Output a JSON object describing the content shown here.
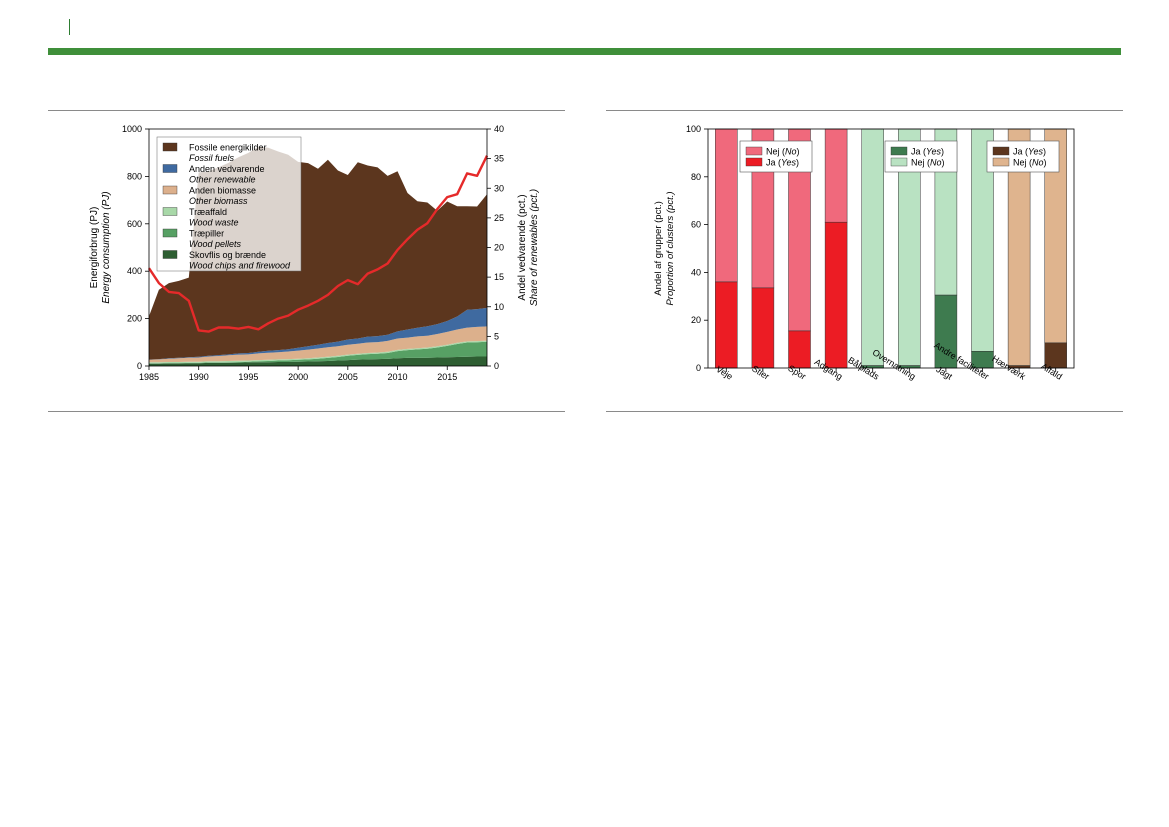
{
  "charts": [
    {
      "type": "area",
      "ylabel": "Energiforbrug (PJ)",
      "ylabel_en": "Energy consumption (PJ)",
      "y2label": "Andel vedvarende (pct.)",
      "y2label_en": "Share of renewables (pct.)",
      "ylim": [
        0,
        1000
      ],
      "y2lim": [
        0,
        40
      ],
      "xlim": [
        1985,
        2019
      ],
      "x_ticks": [
        1985,
        1990,
        1995,
        2000,
        2005,
        2010,
        2015
      ],
      "y_ticks": [
        0,
        200,
        400,
        600,
        800,
        1000
      ],
      "y2_ticks": [
        0,
        5,
        10,
        15,
        20,
        25,
        30,
        35,
        40
      ],
      "legend_position": "top-left",
      "x": [
        1985,
        1986,
        1987,
        1988,
        1989,
        1990,
        1991,
        1992,
        1993,
        1994,
        1995,
        1996,
        1997,
        1998,
        1999,
        2000,
        2001,
        2002,
        2003,
        2004,
        2005,
        2006,
        2007,
        2008,
        2009,
        2010,
        2011,
        2012,
        2013,
        2014,
        2015,
        2016,
        2017,
        2018,
        2019
      ],
      "series": [
        {
          "name": "Skovflis og brænde",
          "name_en": "Wood chips and firewood",
          "color": "#2e5e32",
          "values": [
            10,
            10,
            11,
            11,
            12,
            12,
            13,
            13,
            14,
            14,
            15,
            16,
            16,
            17,
            17,
            18,
            19,
            20,
            21,
            23,
            25,
            27,
            28,
            29,
            30,
            33,
            34,
            34,
            35,
            36,
            37,
            38,
            39,
            40,
            40
          ]
        },
        {
          "name": "Træpiller",
          "name_en": "Wood pellets",
          "color": "#57a064",
          "values": [
            1,
            1,
            1,
            1,
            1,
            1,
            2,
            2,
            2,
            3,
            3,
            4,
            5,
            6,
            7,
            8,
            9,
            11,
            13,
            15,
            18,
            20,
            22,
            23,
            25,
            30,
            33,
            36,
            38,
            42,
            48,
            55,
            60,
            60,
            62
          ]
        },
        {
          "name": "Træaffald",
          "name_en": "Wood waste",
          "color": "#a8d8a8",
          "values": [
            5,
            5,
            5,
            5,
            5,
            5,
            5,
            5,
            5,
            5,
            5,
            5,
            5,
            5,
            5,
            5,
            5,
            5,
            5,
            5,
            5,
            5,
            5,
            5,
            5,
            5,
            5,
            5,
            5,
            5,
            5,
            5,
            5,
            5,
            5
          ]
        },
        {
          "name": "Anden biomasse",
          "name_en": "Other biomass",
          "color": "#dcb08c",
          "values": [
            10,
            12,
            14,
            16,
            17,
            18,
            20,
            22,
            24,
            26,
            26,
            28,
            30,
            30,
            32,
            34,
            36,
            38,
            40,
            40,
            42,
            42,
            44,
            44,
            46,
            48,
            48,
            50,
            50,
            52,
            54,
            56,
            58,
            60,
            60
          ]
        },
        {
          "name": "Anden vedvarende",
          "name_en": "Other renewable",
          "color": "#3f6aa0",
          "values": [
            1,
            1,
            2,
            2,
            2,
            3,
            3,
            4,
            4,
            5,
            6,
            7,
            8,
            9,
            10,
            12,
            14,
            16,
            18,
            20,
            22,
            22,
            25,
            25,
            26,
            30,
            34,
            36,
            40,
            42,
            46,
            55,
            75,
            75,
            78
          ]
        },
        {
          "name": "Fossile energikilder",
          "name_en": "Fossil fuels",
          "color": "#5c361e",
          "values": [
            183,
            293,
            317,
            324,
            336,
            778,
            778,
            793,
            808,
            828,
            844,
            866,
            857,
            838,
            820,
            784,
            773,
            742,
            773,
            722,
            694,
            744,
            722,
            712,
            670,
            676,
            576,
            534,
            522,
            478,
            504,
            465,
            437,
            433,
            480
          ]
        }
      ],
      "line": {
        "name": "Andel vedvarende (pct.)",
        "color": "#e52a2a",
        "values": [
          16.5,
          14,
          12.5,
          12.3,
          11,
          6,
          5.8,
          6.5,
          6.5,
          6.3,
          6.6,
          6.2,
          7.2,
          8,
          8.5,
          9.5,
          10.2,
          11,
          12,
          13.5,
          14.5,
          13.8,
          15.6,
          16.3,
          17.3,
          19.6,
          21.4,
          23,
          24.1,
          26.5,
          28.5,
          29,
          32.5,
          32.1,
          35.5
        ]
      }
    },
    {
      "type": "bar",
      "stacked": true,
      "ylabel": "Andel af grupper (pct.)",
      "ylabel_en": "Proportion of clusters (pct.)",
      "ylim": [
        0,
        100
      ],
      "y_ticks": [
        0,
        20,
        40,
        60,
        80,
        100
      ],
      "categories": [
        "Veje",
        "Stier",
        "Spor",
        "Adgang",
        "Bålplads",
        "Overnatning",
        "Jagt",
        "Andre faciliteter",
        "Hærværk",
        "Affald"
      ],
      "group": [
        0,
        0,
        0,
        0,
        1,
        1,
        1,
        1,
        2,
        2
      ],
      "yes_values": [
        36,
        33.5,
        15.5,
        61,
        1,
        1,
        30.5,
        7,
        1,
        10.5
      ],
      "no_values": [
        64,
        66.5,
        84.5,
        39,
        99,
        99,
        69.5,
        93,
        99,
        89.5
      ],
      "palettes": [
        {
          "yes": "#ec1c24",
          "no": "#f0697c"
        },
        {
          "yes": "#3e7b4f",
          "no": "#b9e2c2"
        },
        {
          "yes": "#5c361e",
          "no": "#dfb48e"
        }
      ],
      "legends": [
        {
          "position": "top-left",
          "first": "no",
          "no_label": "Nej",
          "no_label_en": "No",
          "yes_label": "Ja",
          "yes_label_en": "Yes"
        },
        {
          "position": "top-center",
          "first": "yes",
          "yes_label": "Ja",
          "yes_label_en": "Yes",
          "no_label": "Nej",
          "no_label_en": "No"
        },
        {
          "position": "top-right",
          "first": "yes",
          "yes_label": "Ja",
          "yes_label_en": "Yes",
          "no_label": "Nej",
          "no_label_en": "No"
        }
      ]
    }
  ]
}
